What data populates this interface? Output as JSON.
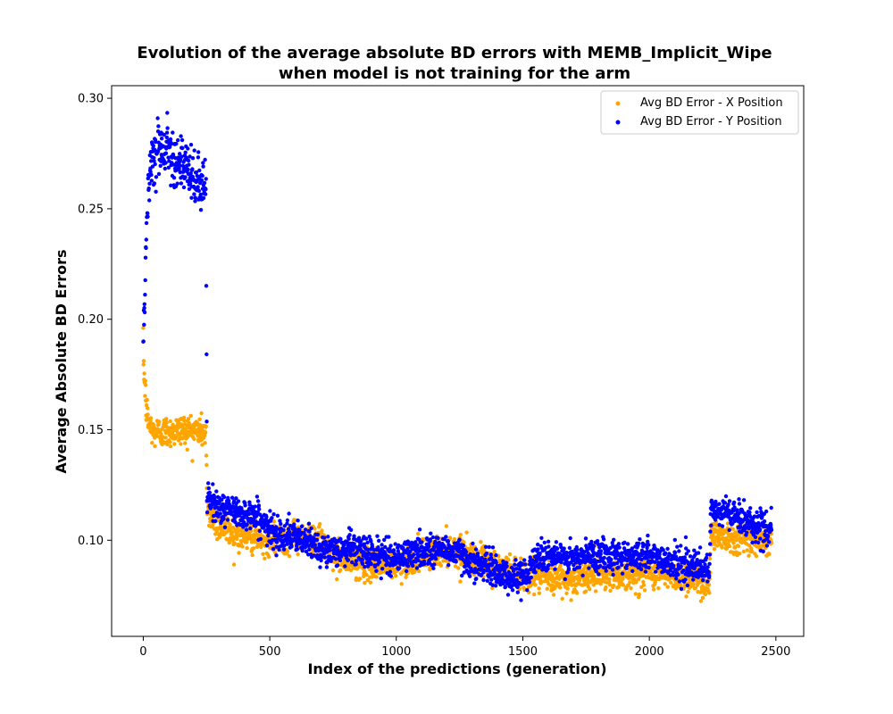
{
  "chart_data": {
    "type": "scatter",
    "title": [
      "Evolution of the average absolute BD errors with MEMB_Implicit_Wipe",
      "when model is not training for the arm"
    ],
    "xlabel": "Index of the predictions (generation)",
    "ylabel": "Average Absolute BD Errors",
    "xlim": [
      -125,
      2610
    ],
    "ylim": [
      0.0565,
      0.3057
    ],
    "xticks": [
      0,
      500,
      1000,
      1500,
      2000,
      2500
    ],
    "xtick_labels": [
      "0",
      "500",
      "1000",
      "1500",
      "2000",
      "2500"
    ],
    "yticks": [
      0.1,
      0.15,
      0.2,
      0.25,
      0.3
    ],
    "ytick_labels": [
      "0.10",
      "0.15",
      "0.20",
      "0.25",
      "0.30"
    ],
    "grid": false,
    "legend_position": "top-right",
    "x_range": [
      0,
      2483
    ],
    "series": [
      {
        "name": "Avg BD Error - X Position",
        "color": "#ffa500",
        "profile": [
          [
            0,
            0.185
          ],
          [
            5,
            0.172
          ],
          [
            12,
            0.16
          ],
          [
            20,
            0.153
          ],
          [
            40,
            0.149
          ],
          [
            100,
            0.149
          ],
          [
            150,
            0.15
          ],
          [
            200,
            0.15
          ],
          [
            248,
            0.149
          ],
          [
            252,
            0.113
          ],
          [
            300,
            0.107
          ],
          [
            350,
            0.104
          ],
          [
            400,
            0.102
          ],
          [
            450,
            0.101
          ],
          [
            500,
            0.1
          ],
          [
            550,
            0.101
          ],
          [
            600,
            0.102
          ],
          [
            650,
            0.101
          ],
          [
            700,
            0.099
          ],
          [
            750,
            0.093
          ],
          [
            800,
            0.091
          ],
          [
            900,
            0.089
          ],
          [
            1000,
            0.089
          ],
          [
            1100,
            0.093
          ],
          [
            1200,
            0.096
          ],
          [
            1250,
            0.095
          ],
          [
            1300,
            0.092
          ],
          [
            1400,
            0.088
          ],
          [
            1450,
            0.086
          ],
          [
            1500,
            0.085
          ],
          [
            1600,
            0.083
          ],
          [
            1700,
            0.082
          ],
          [
            1800,
            0.086
          ],
          [
            1900,
            0.084
          ],
          [
            2000,
            0.086
          ],
          [
            2100,
            0.084
          ],
          [
            2200,
            0.082
          ],
          [
            2238,
            0.08
          ],
          [
            2242,
            0.103
          ],
          [
            2300,
            0.102
          ],
          [
            2400,
            0.101
          ],
          [
            2483,
            0.1
          ]
        ]
      },
      {
        "name": "Avg BD Error - Y Position",
        "color": "#0000ff",
        "profile": [
          [
            0,
            0.182
          ],
          [
            5,
            0.205
          ],
          [
            10,
            0.233
          ],
          [
            20,
            0.26
          ],
          [
            30,
            0.272
          ],
          [
            50,
            0.277
          ],
          [
            100,
            0.278
          ],
          [
            150,
            0.27
          ],
          [
            200,
            0.263
          ],
          [
            248,
            0.26
          ],
          [
            252,
            0.118
          ],
          [
            300,
            0.115
          ],
          [
            350,
            0.113
          ],
          [
            400,
            0.112
          ],
          [
            450,
            0.111
          ],
          [
            500,
            0.104
          ],
          [
            550,
            0.103
          ],
          [
            600,
            0.101
          ],
          [
            650,
            0.099
          ],
          [
            700,
            0.097
          ],
          [
            750,
            0.094
          ],
          [
            800,
            0.097
          ],
          [
            900,
            0.094
          ],
          [
            1000,
            0.092
          ],
          [
            1100,
            0.095
          ],
          [
            1200,
            0.096
          ],
          [
            1250,
            0.094
          ],
          [
            1300,
            0.09
          ],
          [
            1400,
            0.086
          ],
          [
            1450,
            0.083
          ],
          [
            1500,
            0.083
          ],
          [
            1550,
            0.092
          ],
          [
            1600,
            0.093
          ],
          [
            1700,
            0.091
          ],
          [
            1800,
            0.094
          ],
          [
            1900,
            0.093
          ],
          [
            2000,
            0.093
          ],
          [
            2100,
            0.09
          ],
          [
            2200,
            0.087
          ],
          [
            2238,
            0.085
          ],
          [
            2242,
            0.112
          ],
          [
            2300,
            0.113
          ],
          [
            2400,
            0.108
          ],
          [
            2483,
            0.104
          ]
        ]
      }
    ]
  }
}
